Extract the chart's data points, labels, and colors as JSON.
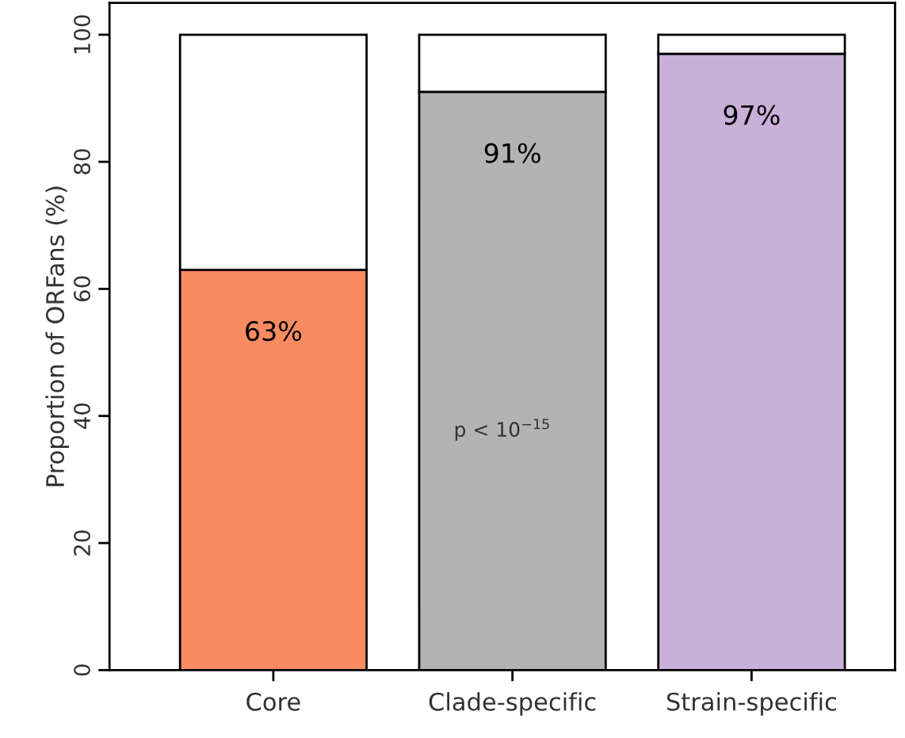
{
  "chart_data": {
    "type": "bar",
    "stacked": true,
    "ylabel": "Proportion of ORFans (%)",
    "categories": [
      "Core",
      "Clade-specific",
      "Strain-specific"
    ],
    "series": [
      {
        "colors": [
          "#f98b60",
          "#b3b3b3",
          "#c9b0d8"
        ],
        "values": [
          63,
          91,
          97
        ],
        "value_labels": [
          "63%",
          "91%",
          "97%"
        ]
      },
      {
        "color": "#ffffff",
        "values": [
          37,
          9,
          3
        ]
      }
    ],
    "ylim": [
      0,
      105
    ],
    "yticks": [
      0,
      20,
      40,
      60,
      80,
      100
    ],
    "annotations": [
      "p < 10$^{−15}$"
    ],
    "grid": false
  }
}
